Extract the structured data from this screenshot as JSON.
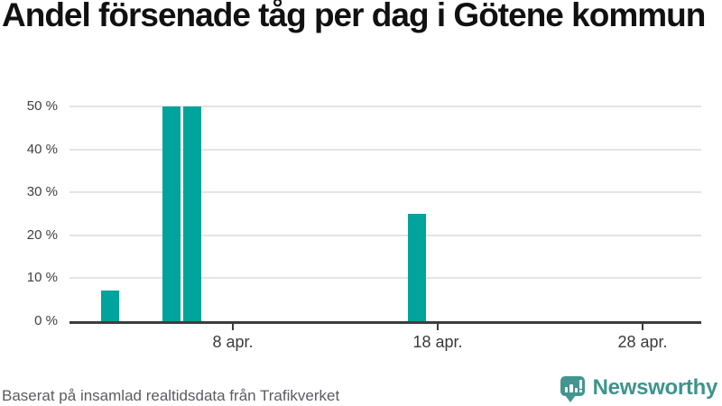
{
  "title": "Andel försenade tåg per dag i Götene kommun",
  "footer": {
    "source_text": "Baserat på insamlad realtidsdata från Trafikverket",
    "brand": "Newsworthy"
  },
  "colors": {
    "bar": "#00a49c",
    "brand_teal": "#43968f",
    "brand_text": "#3e948d",
    "grid": "#e4e4e4",
    "axis": "#3d3d3d",
    "title_text": "#111111",
    "footer_text": "#5b5c60"
  },
  "chart_data": {
    "type": "bar",
    "title": "Andel försenade tåg per dag i Götene kommun",
    "unit": "%",
    "points": [
      {
        "label": "2 apr.",
        "day": 2,
        "value": 7
      },
      {
        "label": "5 apr.",
        "day": 5,
        "value": 50
      },
      {
        "label": "6 apr.",
        "day": 6,
        "value": 50
      },
      {
        "label": "17 apr.",
        "day": 17,
        "value": 25
      }
    ],
    "xticks": [
      {
        "day": 8,
        "label": "8 apr."
      },
      {
        "day": 18,
        "label": "18 apr."
      },
      {
        "day": 28,
        "label": "28 apr."
      }
    ],
    "yticks": [
      {
        "value": 0,
        "label": "0 %"
      },
      {
        "value": 10,
        "label": "10 %"
      },
      {
        "value": 20,
        "label": "20 %"
      },
      {
        "value": 30,
        "label": "30 %"
      },
      {
        "value": 40,
        "label": "40 %"
      },
      {
        "value": 50,
        "label": "50 %"
      }
    ],
    "ylim": [
      0,
      50
    ],
    "xlim_days": [
      0.5,
      31
    ],
    "grid": "horizontal-only",
    "legend": "none"
  }
}
